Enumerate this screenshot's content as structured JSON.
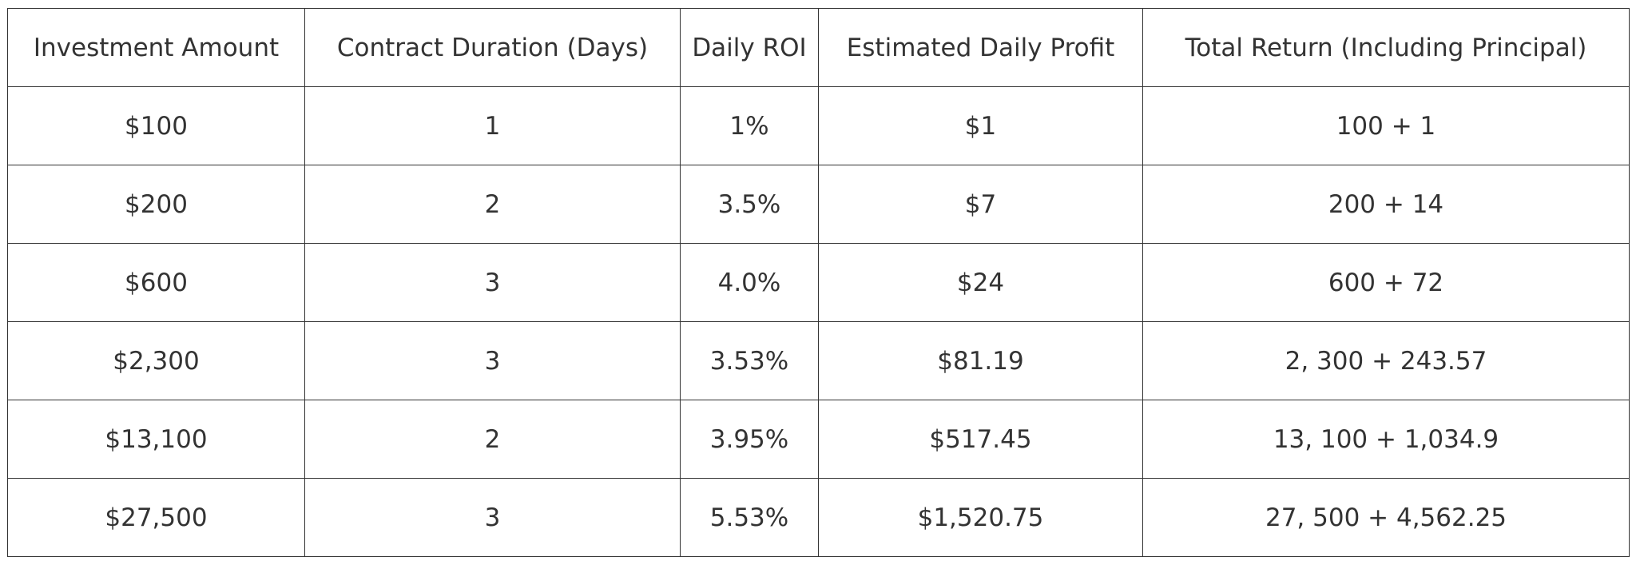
{
  "table": {
    "headers": [
      "Investment Amount",
      "Contract Duration (Days)",
      "Daily ROI",
      "Estimated Daily Profit",
      "Total Return (Including Principal)"
    ],
    "rows": [
      [
        "$100",
        "1",
        "1%",
        "$1",
        "100 + 1"
      ],
      [
        "$200",
        "2",
        "3.5%",
        "$7",
        "200 + 14"
      ],
      [
        "$600",
        "3",
        "4.0%",
        "$24",
        "600 + 72"
      ],
      [
        "$2,300",
        "3",
        "3.53%",
        "$81.19",
        "2, 300 + 243.57"
      ],
      [
        "$13,100",
        "2",
        "3.95%",
        "$517.45",
        "13, 100 + 1,034.9"
      ],
      [
        "$27,500",
        "3",
        "5.53%",
        "$1,520.75",
        "27, 500 + 4,562.25"
      ]
    ]
  }
}
